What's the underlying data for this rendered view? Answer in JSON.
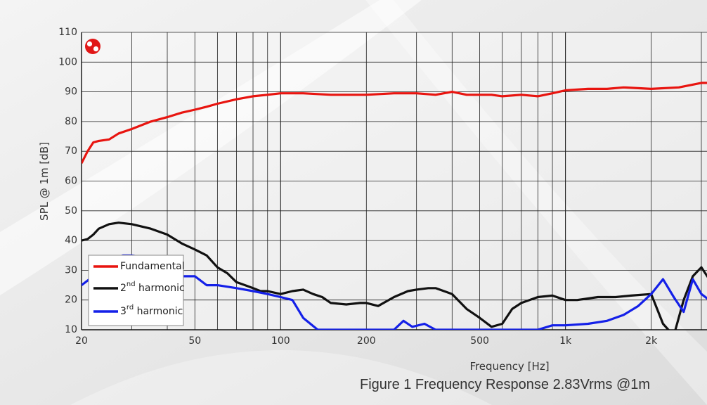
{
  "chart_data": {
    "type": "line",
    "xscale": "log",
    "xlim": [
      20,
      3300
    ],
    "ylim": [
      10,
      110
    ],
    "xlabel": "Frequency [Hz]",
    "ylabel": "SPL @ 1m [dB]",
    "xticks": [
      {
        "value": 20,
        "label": "20"
      },
      {
        "value": 50,
        "label": "50"
      },
      {
        "value": 100,
        "label": "100"
      },
      {
        "value": 200,
        "label": "200"
      },
      {
        "value": 500,
        "label": "500"
      },
      {
        "value": 1000,
        "label": "1k"
      },
      {
        "value": 2000,
        "label": "2k"
      }
    ],
    "yticks": [
      10,
      20,
      30,
      40,
      50,
      60,
      70,
      80,
      90,
      100,
      110
    ],
    "grid": true,
    "legend": "bottom-left",
    "series": [
      {
        "name": "Fundamental",
        "color": "#e8140f",
        "points": [
          [
            20,
            66
          ],
          [
            21,
            70
          ],
          [
            22,
            73
          ],
          [
            23,
            73.5
          ],
          [
            25,
            74
          ],
          [
            27,
            76
          ],
          [
            30,
            77.5
          ],
          [
            35,
            80
          ],
          [
            40,
            81.5
          ],
          [
            45,
            83
          ],
          [
            50,
            84
          ],
          [
            55,
            85
          ],
          [
            60,
            86
          ],
          [
            70,
            87.5
          ],
          [
            80,
            88.5
          ],
          [
            90,
            89
          ],
          [
            100,
            89.5
          ],
          [
            120,
            89.5
          ],
          [
            150,
            89
          ],
          [
            200,
            89
          ],
          [
            250,
            89.5
          ],
          [
            300,
            89.5
          ],
          [
            350,
            89
          ],
          [
            400,
            90
          ],
          [
            450,
            89
          ],
          [
            500,
            89
          ],
          [
            550,
            89
          ],
          [
            600,
            88.5
          ],
          [
            700,
            89
          ],
          [
            800,
            88.5
          ],
          [
            900,
            89.5
          ],
          [
            1000,
            90.5
          ],
          [
            1200,
            91
          ],
          [
            1400,
            91
          ],
          [
            1600,
            91.5
          ],
          [
            2000,
            91
          ],
          [
            2500,
            91.5
          ],
          [
            3000,
            93
          ],
          [
            3300,
            93
          ]
        ]
      },
      {
        "name": "2nd harmonic",
        "color": "#111111",
        "points": [
          [
            20,
            40
          ],
          [
            21,
            40.5
          ],
          [
            22,
            42
          ],
          [
            23,
            44
          ],
          [
            25,
            45.5
          ],
          [
            27,
            46
          ],
          [
            30,
            45.5
          ],
          [
            35,
            44
          ],
          [
            40,
            42
          ],
          [
            45,
            39
          ],
          [
            50,
            37
          ],
          [
            55,
            35
          ],
          [
            60,
            31
          ],
          [
            65,
            29
          ],
          [
            70,
            26
          ],
          [
            75,
            25
          ],
          [
            80,
            24
          ],
          [
            85,
            23
          ],
          [
            90,
            23
          ],
          [
            100,
            22
          ],
          [
            110,
            23
          ],
          [
            120,
            23.5
          ],
          [
            130,
            22
          ],
          [
            140,
            21
          ],
          [
            150,
            19
          ],
          [
            170,
            18.5
          ],
          [
            190,
            19
          ],
          [
            200,
            19
          ],
          [
            220,
            18
          ],
          [
            250,
            21
          ],
          [
            280,
            23
          ],
          [
            300,
            23.5
          ],
          [
            330,
            24
          ],
          [
            350,
            24
          ],
          [
            400,
            22
          ],
          [
            450,
            17
          ],
          [
            500,
            14
          ],
          [
            550,
            11
          ],
          [
            600,
            12
          ],
          [
            650,
            17
          ],
          [
            700,
            19
          ],
          [
            800,
            21
          ],
          [
            900,
            21.5
          ],
          [
            1000,
            20
          ],
          [
            1100,
            20
          ],
          [
            1300,
            21
          ],
          [
            1500,
            21
          ],
          [
            1700,
            21.5
          ],
          [
            2000,
            22
          ],
          [
            2200,
            12
          ],
          [
            2400,
            8
          ],
          [
            2600,
            20
          ],
          [
            2800,
            28
          ],
          [
            3000,
            31
          ],
          [
            3300,
            25
          ]
        ]
      },
      {
        "name": "3rd harmonic",
        "color": "#1420e8",
        "points": [
          [
            20,
            25
          ],
          [
            22,
            28
          ],
          [
            24,
            32
          ],
          [
            26,
            34
          ],
          [
            28,
            35
          ],
          [
            30,
            35
          ],
          [
            35,
            34
          ],
          [
            40,
            32
          ],
          [
            45,
            28
          ],
          [
            50,
            28
          ],
          [
            55,
            25
          ],
          [
            60,
            25
          ],
          [
            70,
            24
          ],
          [
            80,
            23
          ],
          [
            90,
            22
          ],
          [
            100,
            21
          ],
          [
            110,
            20
          ],
          [
            120,
            14
          ],
          [
            135,
            10
          ],
          [
            250,
            10
          ],
          [
            270,
            13
          ],
          [
            290,
            11
          ],
          [
            320,
            12
          ],
          [
            350,
            10
          ],
          [
            600,
            10
          ],
          [
            650,
            10
          ],
          [
            800,
            10
          ],
          [
            900,
            11.5
          ],
          [
            1000,
            11.5
          ],
          [
            1200,
            12
          ],
          [
            1400,
            13
          ],
          [
            1600,
            15
          ],
          [
            1800,
            18
          ],
          [
            2000,
            22
          ],
          [
            2200,
            27
          ],
          [
            2400,
            21
          ],
          [
            2600,
            16
          ],
          [
            2800,
            27
          ],
          [
            3000,
            22
          ],
          [
            3300,
            19
          ]
        ]
      }
    ]
  },
  "caption": "Figure 1 Frequency Response 2.83Vrms @1m",
  "logo_icon": "brand-logo-icon"
}
